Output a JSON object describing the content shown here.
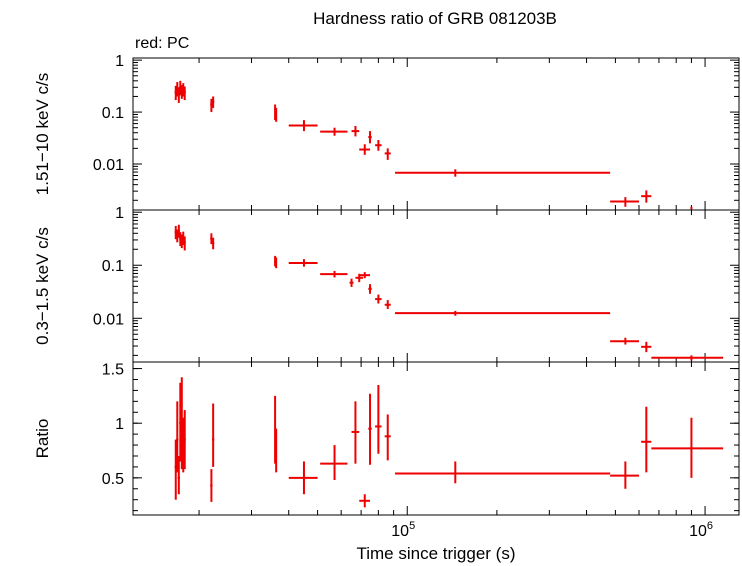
{
  "chart_data": {
    "type": "scatter",
    "title": "Hardness ratio of GRB 081203B",
    "subtitle": "red: PC",
    "xlabel": "Time since trigger (s)",
    "xscale": "log",
    "xlim": [
      12000,
      1300000
    ],
    "x_ticks": [
      {
        "base": "10",
        "exp": "5",
        "value": 100000
      },
      {
        "base": "10",
        "exp": "6",
        "value": 1000000
      }
    ],
    "series_color": "#ee0000",
    "panels": [
      {
        "id": "hard",
        "ylabel": "1.51−10 keV c/s",
        "yscale": "log",
        "ylim": [
          0.0013,
          1.1
        ],
        "y_ticks": [
          {
            "label": "1",
            "value": 1
          },
          {
            "label": "0.1",
            "value": 0.1
          },
          {
            "label": "0.01",
            "value": 0.01
          }
        ],
        "points": [
          {
            "x": 16700,
            "xlo": 16550,
            "xhi": 16850,
            "y": 0.24,
            "ylo": 0.17,
            "yhi": 0.32
          },
          {
            "x": 16900,
            "xlo": 16750,
            "xhi": 17050,
            "y": 0.29,
            "ylo": 0.2,
            "yhi": 0.38
          },
          {
            "x": 17100,
            "xlo": 16950,
            "xhi": 17250,
            "y": 0.22,
            "ylo": 0.15,
            "yhi": 0.3
          },
          {
            "x": 17300,
            "xlo": 17150,
            "xhi": 17450,
            "y": 0.3,
            "ylo": 0.21,
            "yhi": 0.4
          },
          {
            "x": 17500,
            "xlo": 17350,
            "xhi": 17650,
            "y": 0.25,
            "ylo": 0.18,
            "yhi": 0.33
          },
          {
            "x": 17700,
            "xlo": 17550,
            "xhi": 17850,
            "y": 0.28,
            "ylo": 0.2,
            "yhi": 0.36
          },
          {
            "x": 17900,
            "xlo": 17750,
            "xhi": 18050,
            "y": 0.24,
            "ylo": 0.17,
            "yhi": 0.31
          },
          {
            "x": 22000,
            "xlo": 21800,
            "xhi": 22200,
            "y": 0.14,
            "ylo": 0.1,
            "yhi": 0.18
          },
          {
            "x": 22300,
            "xlo": 22100,
            "xhi": 22500,
            "y": 0.16,
            "ylo": 0.12,
            "yhi": 0.2
          },
          {
            "x": 36000,
            "xlo": 35800,
            "xhi": 36200,
            "y": 0.1,
            "ylo": 0.07,
            "yhi": 0.14
          },
          {
            "x": 36300,
            "xlo": 36100,
            "xhi": 36500,
            "y": 0.09,
            "ylo": 0.065,
            "yhi": 0.12
          },
          {
            "x": 45000,
            "xlo": 40000,
            "xhi": 50000,
            "y": 0.055,
            "ylo": 0.043,
            "yhi": 0.07
          },
          {
            "x": 57000,
            "xlo": 51000,
            "xhi": 63000,
            "y": 0.042,
            "ylo": 0.035,
            "yhi": 0.05
          },
          {
            "x": 67000,
            "xlo": 65000,
            "xhi": 69000,
            "y": 0.043,
            "ylo": 0.034,
            "yhi": 0.054
          },
          {
            "x": 72000,
            "xlo": 69000,
            "xhi": 75000,
            "y": 0.019,
            "ylo": 0.015,
            "yhi": 0.024
          },
          {
            "x": 75000,
            "xlo": 74000,
            "xhi": 76000,
            "y": 0.033,
            "ylo": 0.025,
            "yhi": 0.043
          },
          {
            "x": 80000,
            "xlo": 78000,
            "xhi": 82000,
            "y": 0.023,
            "ylo": 0.018,
            "yhi": 0.029
          },
          {
            "x": 86000,
            "xlo": 84000,
            "xhi": 88000,
            "y": 0.016,
            "ylo": 0.012,
            "yhi": 0.02
          },
          {
            "x": 145000,
            "xlo": 91000,
            "xhi": 480000,
            "y": 0.0068,
            "ylo": 0.0057,
            "yhi": 0.0079
          },
          {
            "x": 540000,
            "xlo": 480000,
            "xhi": 600000,
            "y": 0.0019,
            "ylo": 0.0015,
            "yhi": 0.0023
          },
          {
            "x": 635000,
            "xlo": 610000,
            "xhi": 660000,
            "y": 0.0024,
            "ylo": 0.0018,
            "yhi": 0.0031
          },
          {
            "x": 900000,
            "xlo": 895000,
            "xhi": 905000,
            "y": 0.0014,
            "ylo": 0.00135,
            "yhi": 0.0015
          }
        ]
      },
      {
        "id": "soft",
        "ylabel": "0.3−1.5 keV c/s",
        "yscale": "log",
        "ylim": [
          0.0015,
          1.1
        ],
        "y_ticks": [
          {
            "label": "1",
            "value": 1
          },
          {
            "label": "0.1",
            "value": 0.1
          },
          {
            "label": "0.01",
            "value": 0.01
          }
        ],
        "points": [
          {
            "x": 16700,
            "xlo": 16550,
            "xhi": 16850,
            "y": 0.42,
            "ylo": 0.31,
            "yhi": 0.55
          },
          {
            "x": 16900,
            "xlo": 16750,
            "xhi": 17050,
            "y": 0.36,
            "ylo": 0.27,
            "yhi": 0.47
          },
          {
            "x": 17100,
            "xlo": 16950,
            "xhi": 17250,
            "y": 0.45,
            "ylo": 0.33,
            "yhi": 0.58
          },
          {
            "x": 17300,
            "xlo": 17150,
            "xhi": 17450,
            "y": 0.32,
            "ylo": 0.23,
            "yhi": 0.42
          },
          {
            "x": 17500,
            "xlo": 17350,
            "xhi": 17650,
            "y": 0.29,
            "ylo": 0.21,
            "yhi": 0.38
          },
          {
            "x": 17700,
            "xlo": 17550,
            "xhi": 17850,
            "y": 0.33,
            "ylo": 0.24,
            "yhi": 0.43
          },
          {
            "x": 17900,
            "xlo": 17750,
            "xhi": 18050,
            "y": 0.27,
            "ylo": 0.19,
            "yhi": 0.35
          },
          {
            "x": 22000,
            "xlo": 21800,
            "xhi": 22200,
            "y": 0.32,
            "ylo": 0.25,
            "yhi": 0.4
          },
          {
            "x": 22300,
            "xlo": 22100,
            "xhi": 22500,
            "y": 0.26,
            "ylo": 0.2,
            "yhi": 0.33
          },
          {
            "x": 36000,
            "xlo": 35800,
            "xhi": 36200,
            "y": 0.12,
            "ylo": 0.095,
            "yhi": 0.15
          },
          {
            "x": 36300,
            "xlo": 36100,
            "xhi": 36500,
            "y": 0.11,
            "ylo": 0.088,
            "yhi": 0.14
          },
          {
            "x": 45000,
            "xlo": 40000,
            "xhi": 50000,
            "y": 0.11,
            "ylo": 0.094,
            "yhi": 0.13
          },
          {
            "x": 57000,
            "xlo": 51000,
            "xhi": 63000,
            "y": 0.068,
            "ylo": 0.059,
            "yhi": 0.078
          },
          {
            "x": 65000,
            "xlo": 64000,
            "xhi": 66000,
            "y": 0.047,
            "ylo": 0.039,
            "yhi": 0.056
          },
          {
            "x": 69000,
            "xlo": 67000,
            "xhi": 71000,
            "y": 0.058,
            "ylo": 0.048,
            "yhi": 0.069
          },
          {
            "x": 72000,
            "xlo": 69000,
            "xhi": 75000,
            "y": 0.065,
            "ylo": 0.057,
            "yhi": 0.074
          },
          {
            "x": 75000,
            "xlo": 74000,
            "xhi": 76000,
            "y": 0.036,
            "ylo": 0.029,
            "yhi": 0.044
          },
          {
            "x": 80000,
            "xlo": 78000,
            "xhi": 82000,
            "y": 0.023,
            "ylo": 0.019,
            "yhi": 0.028
          },
          {
            "x": 86000,
            "xlo": 84000,
            "xhi": 88000,
            "y": 0.018,
            "ylo": 0.015,
            "yhi": 0.022
          },
          {
            "x": 145000,
            "xlo": 91000,
            "xhi": 480000,
            "y": 0.0125,
            "ylo": 0.0112,
            "yhi": 0.0138
          },
          {
            "x": 540000,
            "xlo": 480000,
            "xhi": 600000,
            "y": 0.0037,
            "ylo": 0.0032,
            "yhi": 0.0043
          },
          {
            "x": 635000,
            "xlo": 610000,
            "xhi": 660000,
            "y": 0.0029,
            "ylo": 0.0023,
            "yhi": 0.0036
          },
          {
            "x": 900000,
            "xlo": 660000,
            "xhi": 1150000,
            "y": 0.0018,
            "ylo": 0.0016,
            "yhi": 0.002
          }
        ]
      },
      {
        "id": "ratio",
        "ylabel": "Ratio",
        "yscale": "linear",
        "ylim": [
          0.16,
          1.56
        ],
        "y_ticks": [
          {
            "label": "1.5",
            "value": 1.5
          },
          {
            "label": "1",
            "value": 1
          },
          {
            "label": "0.5",
            "value": 0.5
          }
        ],
        "points": [
          {
            "x": 16700,
            "xlo": 16550,
            "xhi": 16850,
            "y": 0.6,
            "ylo": 0.3,
            "yhi": 0.85
          },
          {
            "x": 16900,
            "xlo": 16750,
            "xhi": 17050,
            "y": 0.85,
            "ylo": 0.55,
            "yhi": 1.2
          },
          {
            "x": 17100,
            "xlo": 16950,
            "xhi": 17250,
            "y": 0.5,
            "ylo": 0.35,
            "yhi": 0.7
          },
          {
            "x": 17300,
            "xlo": 17150,
            "xhi": 17450,
            "y": 1.0,
            "ylo": 0.65,
            "yhi": 1.37
          },
          {
            "x": 17500,
            "xlo": 17350,
            "xhi": 17650,
            "y": 0.9,
            "ylo": 0.58,
            "yhi": 1.42
          },
          {
            "x": 17700,
            "xlo": 17550,
            "xhi": 17850,
            "y": 0.78,
            "ylo": 0.55,
            "yhi": 1.05
          },
          {
            "x": 17900,
            "xlo": 17750,
            "xhi": 18050,
            "y": 0.85,
            "ylo": 0.58,
            "yhi": 1.12
          },
          {
            "x": 22000,
            "xlo": 21800,
            "xhi": 22200,
            "y": 0.43,
            "ylo": 0.28,
            "yhi": 0.58
          },
          {
            "x": 22300,
            "xlo": 22100,
            "xhi": 22500,
            "y": 0.85,
            "ylo": 0.6,
            "yhi": 1.18
          },
          {
            "x": 36000,
            "xlo": 35800,
            "xhi": 36200,
            "y": 0.9,
            "ylo": 0.63,
            "yhi": 1.25
          },
          {
            "x": 36300,
            "xlo": 36100,
            "xhi": 36500,
            "y": 0.75,
            "ylo": 0.55,
            "yhi": 0.95
          },
          {
            "x": 45000,
            "xlo": 40000,
            "xhi": 50000,
            "y": 0.5,
            "ylo": 0.35,
            "yhi": 0.65
          },
          {
            "x": 57000,
            "xlo": 51000,
            "xhi": 63000,
            "y": 0.63,
            "ylo": 0.48,
            "yhi": 0.8
          },
          {
            "x": 67000,
            "xlo": 65000,
            "xhi": 69000,
            "y": 0.92,
            "ylo": 0.63,
            "yhi": 1.2
          },
          {
            "x": 72000,
            "xlo": 69000,
            "xhi": 75000,
            "y": 0.29,
            "ylo": 0.23,
            "yhi": 0.35
          },
          {
            "x": 75000,
            "xlo": 74000,
            "xhi": 76000,
            "y": 0.95,
            "ylo": 0.62,
            "yhi": 1.27
          },
          {
            "x": 80000,
            "xlo": 78000,
            "xhi": 82000,
            "y": 0.97,
            "ylo": 0.72,
            "yhi": 1.35
          },
          {
            "x": 86000,
            "xlo": 84000,
            "xhi": 88000,
            "y": 0.88,
            "ylo": 0.66,
            "yhi": 1.08
          },
          {
            "x": 145000,
            "xlo": 91000,
            "xhi": 480000,
            "y": 0.54,
            "ylo": 0.45,
            "yhi": 0.65
          },
          {
            "x": 540000,
            "xlo": 480000,
            "xhi": 600000,
            "y": 0.52,
            "ylo": 0.4,
            "yhi": 0.65
          },
          {
            "x": 635000,
            "xlo": 610000,
            "xhi": 660000,
            "y": 0.83,
            "ylo": 0.55,
            "yhi": 1.15
          },
          {
            "x": 900000,
            "xlo": 660000,
            "xhi": 1150000,
            "y": 0.77,
            "ylo": 0.5,
            "yhi": 1.05
          }
        ]
      }
    ]
  }
}
